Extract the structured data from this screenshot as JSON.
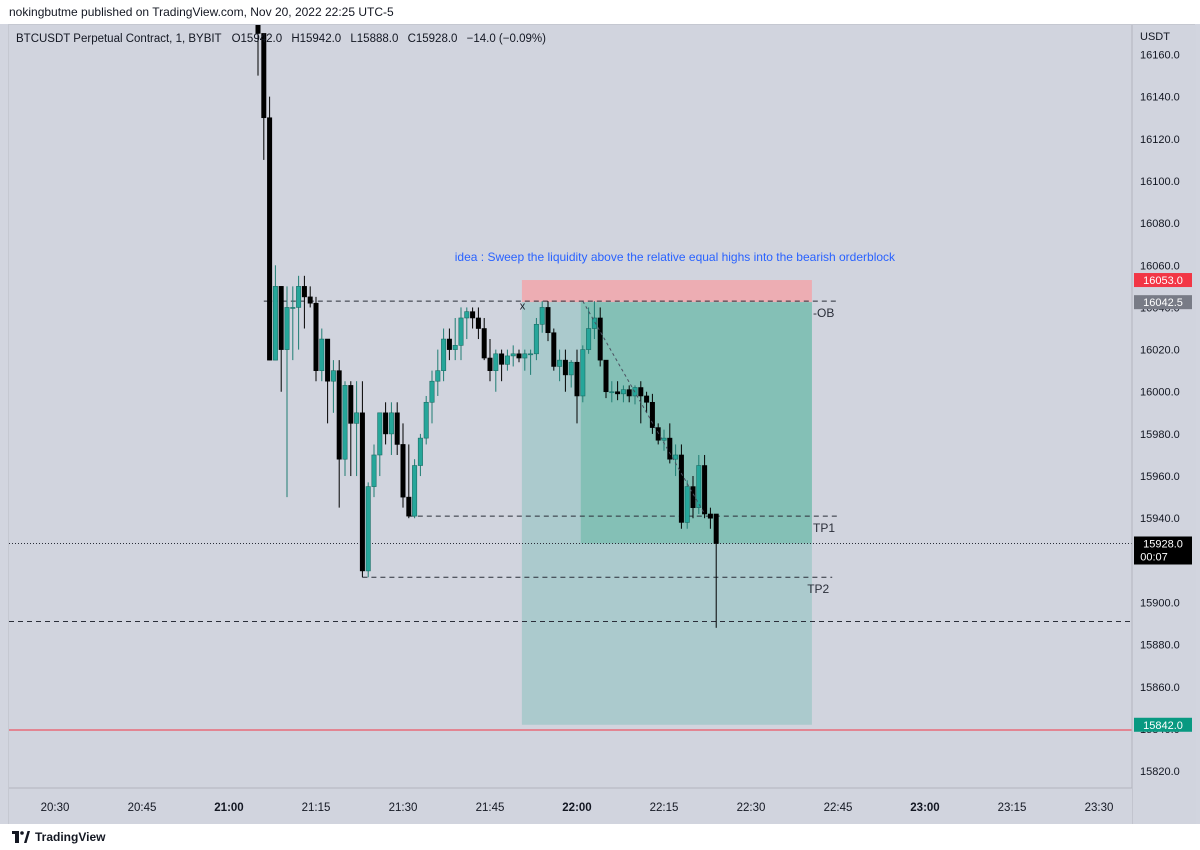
{
  "header": {
    "published": "nokingbutme published on TradingView.com, Nov 20, 2022 22:25 UTC-5"
  },
  "footer": {
    "brand": "TradingView"
  },
  "colors": {
    "background": "#d1d4de",
    "bull": "#26a69a",
    "bear": "#000000",
    "target_zone": "#7fbfb4",
    "target_zone_light": "#a9c9cb",
    "stop_zone": "#f0a8ae",
    "red_label": "#f23645",
    "green_label": "#089981",
    "gray_label": "#787b86",
    "idea_text": "#2962ff"
  },
  "chart_data": {
    "type": "candlestick",
    "symbol_line": {
      "name": "BTCUSDT Perpetual Contract, 1, BYBIT",
      "open": "O15942.0",
      "high": "H15942.0",
      "low": "L15888.0",
      "close": "C15928.0",
      "change": "−14.0 (−0.09%)"
    },
    "y_axis": {
      "unit": "USDT",
      "ylim": [
        15812,
        16174
      ],
      "ticks": [
        "15820.0",
        "15840.0",
        "15860.0",
        "15880.0",
        "15900.0",
        "15920.0",
        "15940.0",
        "15960.0",
        "15980.0",
        "16000.0",
        "16020.0",
        "16040.0",
        "16060.0",
        "16080.0",
        "16100.0",
        "16120.0",
        "16140.0",
        "16160.0"
      ]
    },
    "x_axis": {
      "ticks": [
        {
          "label": "20:30",
          "t": -30,
          "bold": false
        },
        {
          "label": "20:45",
          "t": -15,
          "bold": false
        },
        {
          "label": "21:00",
          "t": 0,
          "bold": true
        },
        {
          "label": "21:15",
          "t": 15,
          "bold": false
        },
        {
          "label": "21:30",
          "t": 30,
          "bold": false
        },
        {
          "label": "21:45",
          "t": 45,
          "bold": false
        },
        {
          "label": "22:00",
          "t": 60,
          "bold": true
        },
        {
          "label": "22:15",
          "t": 75,
          "bold": false
        },
        {
          "label": "22:30",
          "t": 90,
          "bold": false
        },
        {
          "label": "22:45",
          "t": 105,
          "bold": false
        },
        {
          "label": "23:00",
          "t": 120,
          "bold": true
        },
        {
          "label": "23:15",
          "t": 135,
          "bold": false
        },
        {
          "label": "23:30",
          "t": 150,
          "bold": false
        }
      ]
    },
    "candles": [
      [
        5,
        16200,
        16200,
        16150,
        16170
      ],
      [
        6,
        16170,
        16170,
        16110,
        16130
      ],
      [
        7,
        16130,
        16140,
        16015,
        16015
      ],
      [
        8,
        16015,
        16060,
        16015,
        16050
      ],
      [
        9,
        16050,
        16050,
        16000,
        16020
      ],
      [
        10,
        16020,
        16050,
        15950,
        16040
      ],
      [
        11,
        16040,
        16050,
        16015,
        16040
      ],
      [
        12,
        16040,
        16055,
        16020,
        16050
      ],
      [
        13,
        16050,
        16055,
        16030,
        16045
      ],
      [
        14,
        16045,
        16050,
        16040,
        16042
      ],
      [
        15,
        16042,
        16045,
        16005,
        16010
      ],
      [
        16,
        16010,
        16030,
        16005,
        16025
      ],
      [
        17,
        16025,
        16025,
        15985,
        16005
      ],
      [
        18,
        16005,
        16015,
        15990,
        16010
      ],
      [
        19,
        16010,
        16015,
        15945,
        15968
      ],
      [
        20,
        15968,
        16005,
        15960,
        16003
      ],
      [
        21,
        16003,
        16005,
        15960,
        15985
      ],
      [
        22,
        15985,
        16005,
        15960,
        15990
      ],
      [
        23,
        15990,
        16005,
        15912,
        15915
      ],
      [
        24,
        15915,
        15957,
        15912,
        15955
      ],
      [
        25,
        15955,
        15975,
        15950,
        15970
      ],
      [
        26,
        15970,
        15990,
        15960,
        15990
      ],
      [
        27,
        15990,
        15995,
        15975,
        15980
      ],
      [
        28,
        15980,
        15995,
        15970,
        15990
      ],
      [
        29,
        15990,
        15995,
        15970,
        15975
      ],
      [
        30,
        15975,
        15985,
        15945,
        15950
      ],
      [
        31,
        15950,
        15975,
        15940,
        15941
      ],
      [
        32,
        15941,
        15968,
        15940,
        15965
      ],
      [
        33,
        15965,
        15980,
        15960,
        15978
      ],
      [
        34,
        15978,
        15998,
        15975,
        15995
      ],
      [
        35,
        15995,
        16010,
        15985,
        16005
      ],
      [
        36,
        16005,
        16020,
        15998,
        16010
      ],
      [
        37,
        16010,
        16030,
        16005,
        16025
      ],
      [
        38,
        16025,
        16030,
        16015,
        16020
      ],
      [
        39,
        16020,
        16035,
        16015,
        16022
      ],
      [
        40,
        16022,
        16040,
        16015,
        16035
      ],
      [
        41,
        16035,
        16040,
        16025,
        16038
      ],
      [
        42,
        16038,
        16040,
        16030,
        16035
      ],
      [
        43,
        16035,
        16040,
        16025,
        16030
      ],
      [
        44,
        16030,
        16035,
        16015,
        16016
      ],
      [
        45,
        16016,
        16025,
        16005,
        16010
      ],
      [
        46,
        16010,
        16020,
        16000,
        16018
      ],
      [
        47,
        16018,
        16020,
        16005,
        16013
      ],
      [
        48,
        16013,
        16020,
        16010,
        16017
      ],
      [
        49,
        16017,
        16022,
        16012,
        16018
      ],
      [
        50,
        16018,
        16020,
        16014,
        16016
      ],
      [
        51,
        16016,
        16020,
        16010,
        16018
      ],
      [
        52,
        16018,
        16020,
        16008,
        16018
      ],
      [
        53,
        16018,
        16035,
        16015,
        16032
      ],
      [
        54,
        16032,
        16043,
        16028,
        16040
      ],
      [
        55,
        16040,
        16043,
        16024,
        16028
      ],
      [
        56,
        16028,
        16030,
        16010,
        16012
      ],
      [
        57,
        16012,
        16020,
        16005,
        16015
      ],
      [
        58,
        16015,
        16020,
        16000,
        16008
      ],
      [
        59,
        16008,
        16015,
        16002,
        16014
      ],
      [
        60,
        16014,
        16020,
        15985,
        15998
      ],
      [
        61,
        15998,
        16022,
        15995,
        16020
      ],
      [
        62,
        16020,
        16040,
        16018,
        16030
      ],
      [
        63,
        16030,
        16043,
        16025,
        16035
      ],
      [
        64,
        16035,
        16040,
        16012,
        16015
      ],
      [
        65,
        16015,
        16015,
        15997,
        16000
      ],
      [
        66,
        16000,
        16005,
        15995,
        16000
      ],
      [
        67,
        16000,
        16005,
        15996,
        15999
      ],
      [
        68,
        15999,
        16003,
        15995,
        16001
      ],
      [
        69,
        16001,
        16003,
        15995,
        15998
      ],
      [
        70,
        15998,
        16003,
        15994,
        16002
      ],
      [
        71,
        16002,
        16005,
        15985,
        15998
      ],
      [
        72,
        15998,
        16000,
        15990,
        15995
      ],
      [
        73,
        15995,
        15999,
        15980,
        15983
      ],
      [
        74,
        15983,
        15985,
        15975,
        15977
      ],
      [
        75,
        15977,
        15982,
        15972,
        15978
      ],
      [
        76,
        15978,
        15985,
        15966,
        15968
      ],
      [
        77,
        15968,
        15975,
        15960,
        15970
      ],
      [
        78,
        15970,
        15975,
        15935,
        15938
      ],
      [
        79,
        15938,
        15958,
        15935,
        15955
      ],
      [
        80,
        15955,
        15960,
        15940,
        15945
      ],
      [
        81,
        15945,
        15970,
        15942,
        15965
      ],
      [
        82,
        15965,
        15970,
        15940,
        15942
      ],
      [
        83,
        15942,
        15945,
        15935,
        15940
      ],
      [
        84,
        15942,
        15942,
        15888,
        15928
      ]
    ],
    "position": {
      "entry": 16042.5,
      "stop": 16053.0,
      "target": 15842.0,
      "t_start": 50.5,
      "t_end": 100.5
    },
    "horizontal_levels": [
      {
        "price": 16043,
        "t_start": 6,
        "t_end": 105,
        "label": "-OB"
      },
      {
        "price": 15941,
        "t_start": 31,
        "t_end": 105,
        "label": "TP1"
      },
      {
        "price": 15912,
        "t_start": 23,
        "t_end": 104,
        "label": "TP2"
      },
      {
        "price": 15891,
        "t_start": -100,
        "t_end": 200,
        "label": ""
      }
    ],
    "current_price": {
      "price": 15928.0,
      "label": "15928.0",
      "countdown": "00:07"
    },
    "price_labels": [
      {
        "price": 16053.0,
        "label": "16053.0",
        "color": "#f23645"
      },
      {
        "price": 16042.5,
        "label": "16042.5",
        "color": "#787b86"
      },
      {
        "price": 15842.0,
        "label": "15842.0",
        "color": "#089981"
      }
    ],
    "red_line": {
      "price": 15839.5
    },
    "x_mark": {
      "label": "x",
      "t": 51,
      "price": 16040
    },
    "trend_line": {
      "t1": 61,
      "p1": 16043,
      "t2": 82,
      "p2": 15942
    },
    "annotation": "idea : Sweep the liquidity above the relative equal highs into the bearish orderblock"
  }
}
